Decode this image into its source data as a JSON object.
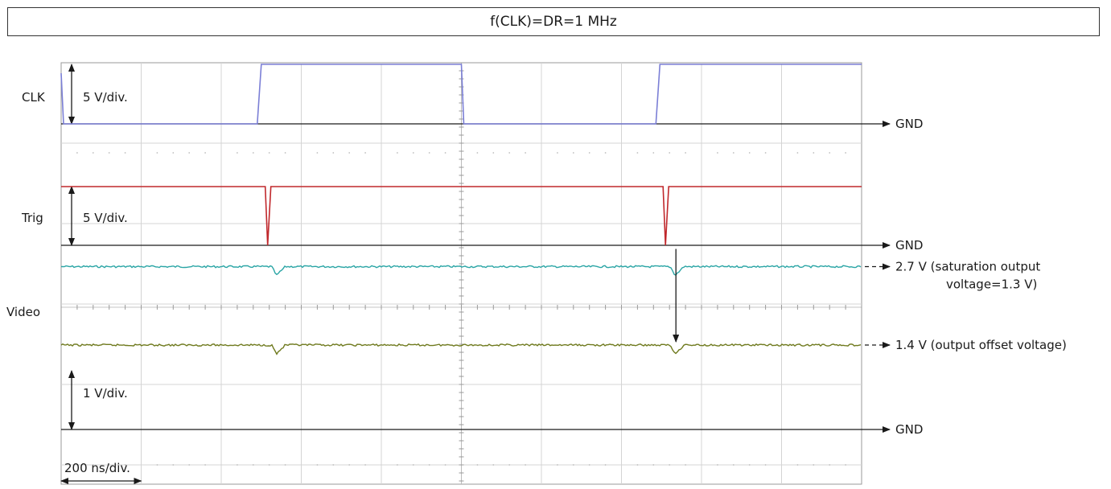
{
  "title": "f(CLK)=DR=1 MHz",
  "chart_data": {
    "type": "line",
    "title": "f(CLK)=DR=1 MHz",
    "xlabel": "",
    "ylabel": "",
    "x_unit": "ns",
    "x_range": [
      0,
      2000
    ],
    "time_per_div": "200 ns/div.",
    "grid": true,
    "channels": [
      {
        "name": "CLK",
        "scale_label": "5 V/div.",
        "color": "#7b7fd6",
        "ground_label": "GND",
        "waveform": {
          "x": [
            0,
            6,
            16,
            490,
            500,
            1000,
            1006,
            1016,
            1486,
            1496,
            2000
          ],
          "y": [
            0.85,
            0.0,
            0.0,
            0.0,
            1.0,
            1.0,
            0.0,
            0.0,
            0.0,
            1.0,
            1.0
          ]
        }
      },
      {
        "name": "Trig",
        "scale_label": "5 V/div.",
        "color": "#c0282c",
        "ground_label": "GND",
        "waveform": {
          "x": [
            0,
            510,
            516,
            524,
            1010,
            1504,
            1510,
            1518,
            2000
          ],
          "y": [
            1.0,
            1.0,
            0.0,
            1.0,
            1.0,
            1.0,
            0.0,
            1.0,
            1.0
          ]
        }
      },
      {
        "name": "Video",
        "scale_label": "1 V/div.",
        "ground_label": "GND",
        "traces": [
          {
            "color": "#2aa5a5",
            "level_label": "2.7 V (saturation output voltage=1.3 V)",
            "level_volts": 2.7,
            "dip_times": [
              530,
              1526
            ]
          },
          {
            "color": "#6f7a1e",
            "level_label": "1.4 V (output offset voltage)",
            "level_volts": 1.4,
            "dip_times": [
              530,
              1526
            ]
          }
        ]
      }
    ],
    "annotations": [
      {
        "text": "2.7 V (saturation output",
        "target": "video-saturation-level"
      },
      {
        "text": "voltage=1.3 V)",
        "target": "video-saturation-level"
      },
      {
        "text": "1.4 V (output offset voltage)",
        "target": "video-offset-level"
      }
    ]
  }
}
